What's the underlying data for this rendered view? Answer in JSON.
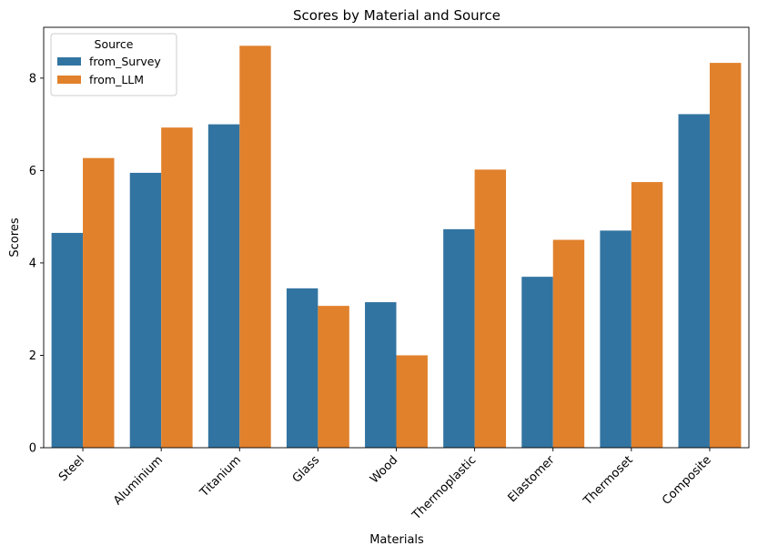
{
  "chart_data": {
    "type": "bar",
    "title": "Scores by Material and Source",
    "xlabel": "Materials",
    "ylabel": "Scores",
    "categories": [
      "Steel",
      "Aluminium",
      "Titanium",
      "Glass",
      "Wood",
      "Thermoplastic",
      "Elastomer",
      "Thermoset",
      "Composite"
    ],
    "series": [
      {
        "name": "from_Survey",
        "color": "#3274a1",
        "values": [
          4.65,
          5.95,
          7.0,
          3.45,
          3.15,
          4.73,
          3.7,
          4.7,
          7.22
        ]
      },
      {
        "name": "from_LLM",
        "color": "#e1812c",
        "values": [
          6.27,
          6.93,
          8.7,
          3.07,
          2.0,
          6.02,
          4.5,
          5.75,
          8.33
        ]
      }
    ],
    "ylim": [
      0,
      9.1
    ],
    "yticks": [
      0,
      2,
      4,
      6,
      8
    ],
    "legend": {
      "title": "Source",
      "placement": "top-left"
    },
    "grid": false
  }
}
